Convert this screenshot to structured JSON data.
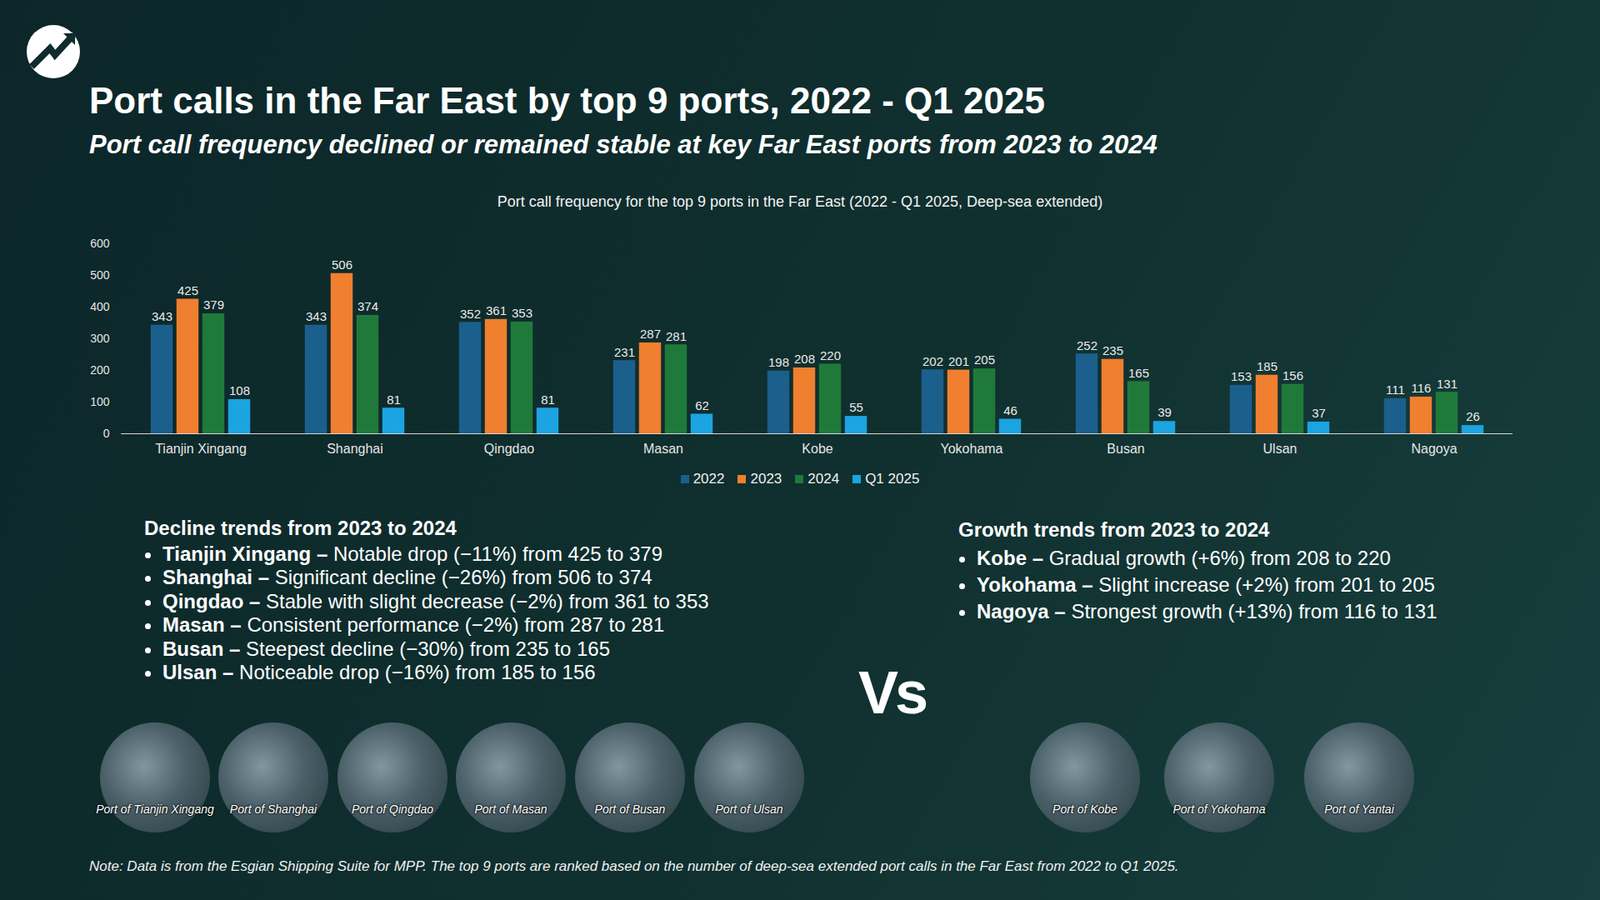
{
  "title": "Port calls in the Far East by top 9 ports, 2022 - Q1 2025",
  "subtitle": "Port call frequency declined or remained stable at key Far East ports from 2023 to 2024",
  "chart_data": {
    "type": "bar",
    "title": "Port call frequency for the top 9 ports in the Far East (2022 - Q1 2025, Deep-sea extended)",
    "categories": [
      "Tianjin Xingang",
      "Shanghai",
      "Qingdao",
      "Masan",
      "Kobe",
      "Yokohama",
      "Busan",
      "Ulsan",
      "Nagoya"
    ],
    "series": [
      {
        "name": "2022",
        "color": "#1b5f8c",
        "values": [
          343,
          343,
          352,
          231,
          198,
          202,
          252,
          153,
          111
        ]
      },
      {
        "name": "2023",
        "color": "#f07f2f",
        "values": [
          425,
          506,
          361,
          287,
          208,
          201,
          235,
          185,
          116
        ]
      },
      {
        "name": "2024",
        "color": "#1f7a3a",
        "values": [
          379,
          374,
          353,
          281,
          220,
          205,
          165,
          156,
          131
        ]
      },
      {
        "name": "Q1 2025",
        "color": "#1ba3e2",
        "values": [
          108,
          81,
          81,
          62,
          55,
          46,
          39,
          37,
          26
        ]
      }
    ],
    "ylim": [
      0,
      600
    ],
    "yticks": [
      0,
      100,
      200,
      300,
      400,
      500,
      600
    ],
    "grid": false,
    "data_labels": true,
    "legend": "bottom"
  },
  "decline": {
    "heading": "Decline trends from 2023 to 2024",
    "items": [
      {
        "name": "Tianjin Xingang –",
        "text": "Notable drop (−11%) from 425 to 379"
      },
      {
        "name": "Shanghai –",
        "text": "Significant decline (−26%) from 506 to 374"
      },
      {
        "name": "Qingdao –",
        "text": "Stable with slight decrease (−2%) from 361 to 353"
      },
      {
        "name": "Masan –",
        "text": "Consistent performance (−2%) from 287 to 281"
      },
      {
        "name": "Busan –",
        "text": "Steepest decline (−30%) from 235 to 165"
      },
      {
        "name": "Ulsan –",
        "text": "Noticeable drop (−16%) from 185 to 156"
      }
    ]
  },
  "growth": {
    "heading": "Growth trends from 2023 to 2024",
    "items": [
      {
        "name": "Kobe –",
        "text": "Gradual growth (+6%) from 208 to 220"
      },
      {
        "name": "Yokohama –",
        "text": "Slight increase (+2%) from 201 to 205"
      },
      {
        "name": "Nagoya –",
        "text": "Strongest growth (+13%) from 116 to 131"
      }
    ]
  },
  "vs": "Vs",
  "images": {
    "left": [
      "Port of Tianjin Xingang",
      "Port of Shanghai",
      "Port of Qingdao",
      "Port of Masan",
      "Port of Busan",
      "Port of Ulsan"
    ],
    "right": [
      "Port of Kobe",
      "Port of Yokohama",
      "Port of Yantai"
    ]
  },
  "note": "Note: Data is from the Esgian Shipping Suite for MPP. The top 9 ports are ranked based on the number of deep-sea extended port calls in the Far East from 2022 to Q1 2025."
}
